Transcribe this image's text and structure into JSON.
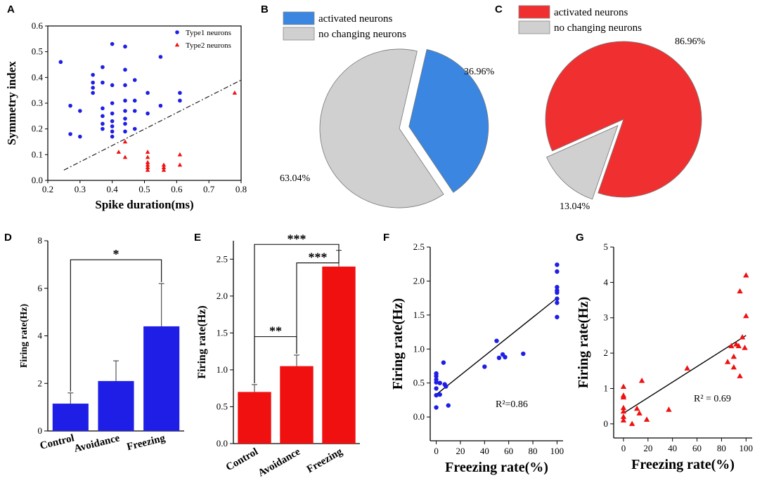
{
  "colors": {
    "blue": "#1e1ee6",
    "red": "#f01010",
    "pie_blue": "#3a86e0",
    "pie_red": "#f03030",
    "gray": "#d0d0d0"
  },
  "chart_data": [
    {
      "panel": "A",
      "type": "scatter",
      "xlabel": "Spike duration(ms)",
      "ylabel": "Symmetry index",
      "xlim": [
        0.2,
        0.8
      ],
      "ylim": [
        0.0,
        0.6
      ],
      "xticks": [
        "0.2",
        "0.3",
        "0.4",
        "0.5",
        "0.6",
        "0.7",
        "0.8"
      ],
      "yticks": [
        "0.0",
        "0.1",
        "0.2",
        "0.3",
        "0.4",
        "0.5",
        "0.6"
      ],
      "legend": [
        "Type1 neurons",
        "Type2 neurons"
      ],
      "series": [
        {
          "name": "Type1 neurons",
          "marker": "circle",
          "color": "#1e1ee6",
          "points": [
            [
              0.24,
              0.46
            ],
            [
              0.27,
              0.29
            ],
            [
              0.27,
              0.18
            ],
            [
              0.3,
              0.27
            ],
            [
              0.3,
              0.17
            ],
            [
              0.34,
              0.41
            ],
            [
              0.34,
              0.38
            ],
            [
              0.34,
              0.36
            ],
            [
              0.34,
              0.34
            ],
            [
              0.37,
              0.44
            ],
            [
              0.37,
              0.38
            ],
            [
              0.37,
              0.28
            ],
            [
              0.37,
              0.25
            ],
            [
              0.37,
              0.22
            ],
            [
              0.37,
              0.2
            ],
            [
              0.4,
              0.53
            ],
            [
              0.4,
              0.37
            ],
            [
              0.4,
              0.3
            ],
            [
              0.4,
              0.26
            ],
            [
              0.4,
              0.23
            ],
            [
              0.4,
              0.21
            ],
            [
              0.4,
              0.19
            ],
            [
              0.4,
              0.17
            ],
            [
              0.44,
              0.52
            ],
            [
              0.44,
              0.43
            ],
            [
              0.44,
              0.37
            ],
            [
              0.44,
              0.31
            ],
            [
              0.44,
              0.27
            ],
            [
              0.44,
              0.24
            ],
            [
              0.44,
              0.22
            ],
            [
              0.44,
              0.19
            ],
            [
              0.47,
              0.39
            ],
            [
              0.47,
              0.31
            ],
            [
              0.47,
              0.27
            ],
            [
              0.47,
              0.2
            ],
            [
              0.51,
              0.34
            ],
            [
              0.51,
              0.26
            ],
            [
              0.55,
              0.48
            ],
            [
              0.55,
              0.29
            ],
            [
              0.61,
              0.34
            ],
            [
              0.61,
              0.31
            ]
          ]
        },
        {
          "name": "Type2 neurons",
          "marker": "triangle",
          "color": "#f01010",
          "points": [
            [
              0.42,
              0.11
            ],
            [
              0.44,
              0.15
            ],
            [
              0.44,
              0.09
            ],
            [
              0.51,
              0.11
            ],
            [
              0.51,
              0.09
            ],
            [
              0.51,
              0.07
            ],
            [
              0.51,
              0.06
            ],
            [
              0.51,
              0.05
            ],
            [
              0.51,
              0.04
            ],
            [
              0.56,
              0.06
            ],
            [
              0.56,
              0.05
            ],
            [
              0.56,
              0.04
            ],
            [
              0.61,
              0.1
            ],
            [
              0.61,
              0.06
            ],
            [
              0.78,
              0.34
            ]
          ]
        }
      ],
      "divider_line": {
        "x": [
          0.25,
          0.8
        ],
        "y": [
          0.04,
          0.39
        ]
      }
    },
    {
      "panel": "B",
      "type": "pie",
      "legend": [
        "activated neurons",
        "no changing neurons"
      ],
      "slices": [
        {
          "label": "activated neurons",
          "value": 36.96,
          "text": "36.96%",
          "color": "#3a86e0",
          "exploded": true
        },
        {
          "label": "no changing neurons",
          "value": 63.04,
          "text": "63.04%",
          "color": "#d0d0d0",
          "exploded": false
        }
      ]
    },
    {
      "panel": "C",
      "type": "pie",
      "legend": [
        "activated neurons",
        "no changing neurons"
      ],
      "slices": [
        {
          "label": "activated neurons",
          "value": 86.96,
          "text": "86.96%",
          "color": "#f03030",
          "exploded": false
        },
        {
          "label": "no changing neurons",
          "value": 13.04,
          "text": "13.04%",
          "color": "#d0d0d0",
          "exploded": true
        }
      ]
    },
    {
      "panel": "D",
      "type": "bar",
      "color": "#1e1ee6",
      "ylabel": "Firing rate(Hz)",
      "ylim": [
        0,
        8
      ],
      "yticks": [
        "0",
        "2",
        "4",
        "6",
        "8"
      ],
      "categories": [
        "Control",
        "Avoidance",
        "Freezing"
      ],
      "values": [
        1.15,
        2.1,
        4.4
      ],
      "errors": [
        0.45,
        0.85,
        1.8
      ],
      "significance": [
        {
          "from": 0,
          "to": 2,
          "label": "*",
          "level": 7.2
        }
      ]
    },
    {
      "panel": "E",
      "type": "bar",
      "color": "#f01010",
      "ylabel": "Firing rate(Hz)",
      "ylim": [
        0,
        2.75
      ],
      "yticks": [
        "0.0",
        "0.5",
        "1.0",
        "1.5",
        "2.0",
        "2.5"
      ],
      "categories": [
        "Control",
        "Avoidance",
        "Freezing"
      ],
      "values": [
        0.7,
        1.05,
        2.4
      ],
      "errors": [
        0.1,
        0.15,
        0.22
      ],
      "significance": [
        {
          "from": 0,
          "to": 1,
          "label": "**",
          "level": 1.45
        },
        {
          "from": 1,
          "to": 2,
          "label": "***",
          "level": 2.45
        },
        {
          "from": 0,
          "to": 2,
          "label": "***",
          "level": 2.7
        }
      ]
    },
    {
      "panel": "F",
      "type": "scatter",
      "color": "#1e1ee6",
      "marker": "circle",
      "xlabel": "Freezing rate(%)",
      "ylabel": "Firing rate(Hz)",
      "xlim": [
        -5,
        105
      ],
      "ylim": [
        -0.35,
        2.5
      ],
      "xticks": [
        "0",
        "20",
        "40",
        "60",
        "80",
        "100"
      ],
      "yticks": [
        "0.0",
        "0.5",
        "1.0",
        "1.5",
        "2.0",
        "2.5"
      ],
      "annotation": "R²=0.86",
      "points": [
        [
          0,
          0.14
        ],
        [
          0,
          0.32
        ],
        [
          0,
          0.42
        ],
        [
          0,
          0.51
        ],
        [
          0,
          0.55
        ],
        [
          0,
          0.6
        ],
        [
          0,
          0.64
        ],
        [
          3,
          0.33
        ],
        [
          3,
          0.5
        ],
        [
          6,
          0.8
        ],
        [
          7,
          0.48
        ],
        [
          8,
          0.45
        ],
        [
          10,
          0.17
        ],
        [
          40,
          0.74
        ],
        [
          50,
          1.12
        ],
        [
          52,
          0.87
        ],
        [
          55,
          0.92
        ],
        [
          57,
          0.88
        ],
        [
          72,
          0.93
        ],
        [
          100,
          2.24
        ],
        [
          100,
          2.14
        ],
        [
          100,
          1.91
        ],
        [
          100,
          1.86
        ],
        [
          100,
          1.83
        ],
        [
          100,
          1.74
        ],
        [
          100,
          1.68
        ],
        [
          100,
          1.47
        ]
      ],
      "fit": {
        "x": [
          0,
          100
        ],
        "y": [
          0.33,
          1.75
        ]
      }
    },
    {
      "panel": "G",
      "type": "scatter",
      "color": "#f01010",
      "marker": "triangle",
      "xlabel": "Freezing rate(%)",
      "ylabel": "Firing rate(Hz)",
      "xlim": [
        -8,
        105
      ],
      "ylim": [
        -0.4,
        5
      ],
      "xticks": [
        "0",
        "20",
        "40",
        "60",
        "80",
        "100"
      ],
      "yticks": [
        "0",
        "1",
        "2",
        "3",
        "4",
        "5"
      ],
      "annotation": "R² = 0.69",
      "points": [
        [
          0,
          1.05
        ],
        [
          0,
          0.8
        ],
        [
          0,
          0.75
        ],
        [
          0,
          0.45
        ],
        [
          0,
          0.35
        ],
        [
          0,
          0.2
        ],
        [
          0,
          0.1
        ],
        [
          7,
          0.0
        ],
        [
          11,
          0.43
        ],
        [
          13,
          0.3
        ],
        [
          15,
          1.22
        ],
        [
          19,
          0.12
        ],
        [
          37,
          0.4
        ],
        [
          52,
          1.57
        ],
        [
          85,
          1.75
        ],
        [
          88,
          2.2
        ],
        [
          90,
          1.6
        ],
        [
          90,
          1.9
        ],
        [
          92,
          2.25
        ],
        [
          94,
          2.2
        ],
        [
          95,
          1.35
        ],
        [
          95,
          3.75
        ],
        [
          97,
          2.45
        ],
        [
          99,
          2.15
        ],
        [
          100,
          3.05
        ],
        [
          100,
          4.2
        ]
      ],
      "fit": {
        "x": [
          0,
          100
        ],
        "y": [
          0.3,
          2.5
        ]
      }
    }
  ],
  "panel_letters": [
    "A",
    "B",
    "C",
    "D",
    "E",
    "F",
    "G"
  ]
}
